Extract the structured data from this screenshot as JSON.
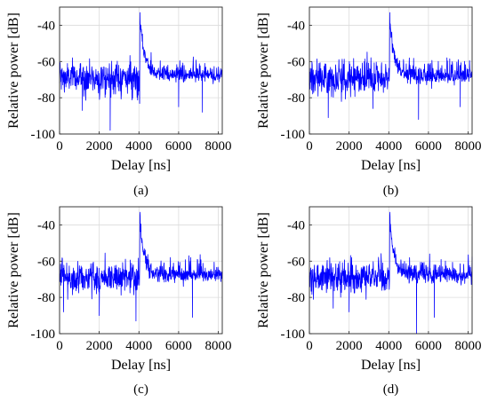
{
  "chart_data": [
    {
      "type": "line",
      "caption": "(a)",
      "xlabel": "Delay [ns]",
      "ylabel": "Relative power [dB]",
      "xlim": [
        0,
        8200
      ],
      "ylim": [
        -100,
        -30
      ],
      "xticks": [
        0,
        2000,
        4000,
        6000,
        8000
      ],
      "yticks": [
        -40,
        -60,
        -80,
        -100
      ],
      "grid": true,
      "series_color": "#0000ff",
      "series": [
        {
          "noise_floor_db": -69,
          "noise_std_db": 4.5,
          "peak_delay_ns": 4050,
          "peak_db": -33,
          "notable_dips": [
            {
              "x": 2550,
              "y": -98
            },
            {
              "x": 1150,
              "y": -87
            },
            {
              "x": 6000,
              "y": -85
            },
            {
              "x": 7200,
              "y": -88
            }
          ]
        }
      ]
    },
    {
      "type": "line",
      "caption": "(b)",
      "xlabel": "Delay [ns]",
      "ylabel": "Relative power [dB]",
      "xlim": [
        0,
        8200
      ],
      "ylim": [
        -100,
        -30
      ],
      "xticks": [
        0,
        2000,
        4000,
        6000,
        8000
      ],
      "yticks": [
        -40,
        -60,
        -80,
        -100
      ],
      "grid": true,
      "series_color": "#0000ff",
      "series": [
        {
          "noise_floor_db": -69,
          "noise_std_db": 4.5,
          "peak_delay_ns": 4050,
          "peak_db": -33,
          "notable_dips": [
            {
              "x": 950,
              "y": -91
            },
            {
              "x": 5500,
              "y": -92
            },
            {
              "x": 3200,
              "y": -86
            },
            {
              "x": 7600,
              "y": -85
            }
          ]
        }
      ]
    },
    {
      "type": "line",
      "caption": "(c)",
      "xlabel": "Delay [ns]",
      "ylabel": "Relative power [dB]",
      "xlim": [
        0,
        8200
      ],
      "ylim": [
        -100,
        -30
      ],
      "xticks": [
        0,
        2000,
        4000,
        6000,
        8000
      ],
      "yticks": [
        -40,
        -60,
        -80,
        -100
      ],
      "grid": true,
      "series_color": "#0000ff",
      "series": [
        {
          "noise_floor_db": -69,
          "noise_std_db": 4.5,
          "peak_delay_ns": 4050,
          "peak_db": -33,
          "notable_dips": [
            {
              "x": 2000,
              "y": -90
            },
            {
              "x": 3850,
              "y": -93
            },
            {
              "x": 6700,
              "y": -91
            },
            {
              "x": 200,
              "y": -88
            }
          ]
        }
      ]
    },
    {
      "type": "line",
      "caption": "(d)",
      "xlabel": "Delay [ns]",
      "ylabel": "Relative power [dB]",
      "xlim": [
        0,
        8200
      ],
      "ylim": [
        -100,
        -30
      ],
      "xticks": [
        0,
        2000,
        4000,
        6000,
        8000
      ],
      "yticks": [
        -40,
        -60,
        -80,
        -100
      ],
      "grid": true,
      "series_color": "#0000ff",
      "series": [
        {
          "noise_floor_db": -69,
          "noise_std_db": 4.5,
          "peak_delay_ns": 4050,
          "peak_db": -33,
          "notable_dips": [
            {
              "x": 5400,
              "y": -100
            },
            {
              "x": 6300,
              "y": -91
            },
            {
              "x": 2000,
              "y": -88
            },
            {
              "x": 1200,
              "y": -86
            }
          ]
        }
      ]
    }
  ]
}
